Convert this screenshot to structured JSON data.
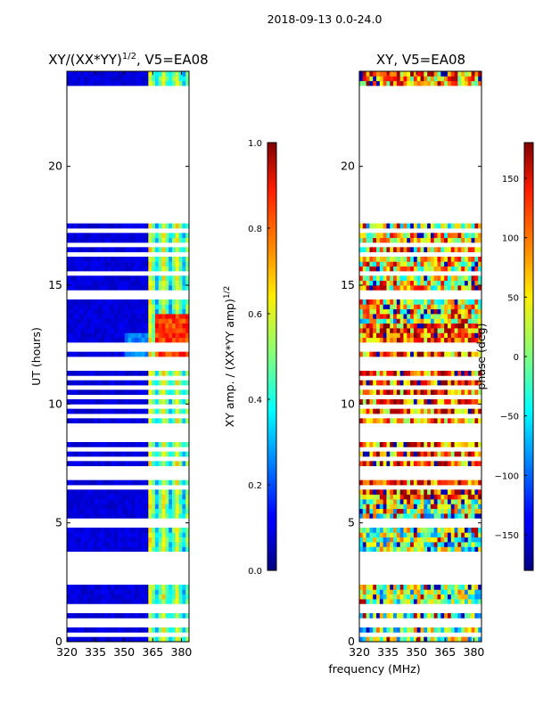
{
  "chart_data": {
    "type": "heatmap",
    "suptitle": "2018-09-13 0.0-24.0",
    "xlabel": "frequency (MHz)",
    "panels": [
      {
        "id": "amp",
        "title_prefix": "XY/(XX*YY)",
        "title_exp": "1/2",
        "title_suffix": ", V5=EA08",
        "ylabel": "UT (hours)",
        "xlim": [
          320,
          384
        ],
        "ylim": [
          0,
          24
        ],
        "xticks": [
          320,
          335,
          350,
          365,
          380
        ],
        "yticks": [
          0,
          5,
          10,
          15,
          20
        ],
        "colorbar": {
          "label_prefix": "XY amp. / (XX*YY amp)",
          "label_exp": "1/2",
          "range": [
            0.0,
            1.0
          ],
          "ticks": [
            "0.0",
            "0.2",
            "0.4",
            "0.6",
            "0.8",
            "1.0"
          ],
          "colormap": "jet"
        },
        "data_gap_hours": [
          17.5,
          22.4
        ],
        "description": "Mostly low amplitude (~0.05) across band; elevated amplitude 0.3-0.6 between 362-380 MHz; peak ~0.8 near 12-14 UT at 365-380 MHz"
      },
      {
        "id": "phase",
        "title": "XY, V5=EA08",
        "xlim": [
          320,
          384
        ],
        "ylim": [
          0,
          24
        ],
        "xticks": [
          320,
          335,
          350,
          365,
          380
        ],
        "yticks": [
          0,
          5,
          10,
          15,
          20
        ],
        "colorbar": {
          "label": "phase (deg)",
          "range": [
            -180,
            180
          ],
          "ticks": [
            "-150",
            "-100",
            "-50",
            "0",
            "50",
            "100",
            "150"
          ],
          "colormap": "jet"
        },
        "data_gap_hours": [
          17.5,
          22.4
        ],
        "description": "Noisy phase spanning -180 to 180 deg; red/orange dominant 6-13 UT, yellow/green elsewhere"
      }
    ]
  }
}
